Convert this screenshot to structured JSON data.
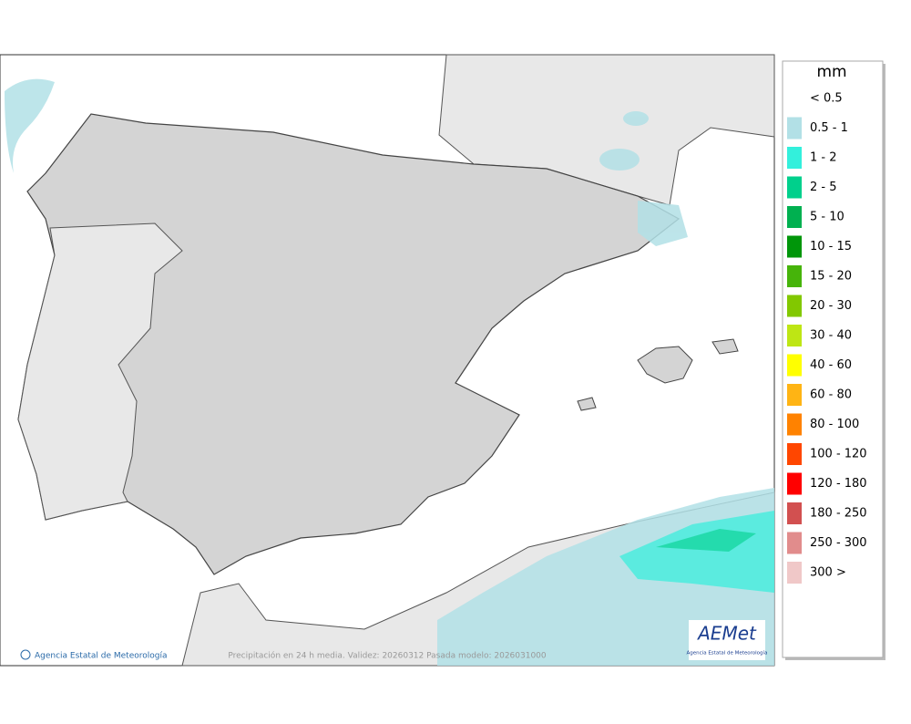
{
  "legend": {
    "unit": "mm",
    "items": [
      {
        "label": "< 0.5"
      },
      {
        "label": "0.5 - 1",
        "color": "#b2e0e6"
      },
      {
        "label": "1 - 2",
        "color": "#33f0dc"
      },
      {
        "label": "2 - 5",
        "color": "#00d08c"
      },
      {
        "label": "5 - 10",
        "color": "#00b050"
      },
      {
        "label": "10 - 15",
        "color": "#00960a"
      },
      {
        "label": "15 - 20",
        "color": "#46b40a"
      },
      {
        "label": "20 - 30",
        "color": "#82c800"
      },
      {
        "label": "30 - 40",
        "color": "#bee614"
      },
      {
        "label": "40 - 60",
        "color": "#ffff00"
      },
      {
        "label": "60 - 80",
        "color": "#ffb414"
      },
      {
        "label": "80 - 100",
        "color": "#ff8200"
      },
      {
        "label": "100 - 120",
        "color": "#ff4600"
      },
      {
        "label": "120 - 180",
        "color": "#ff0000"
      },
      {
        "label": "180 - 250",
        "color": "#d25050"
      },
      {
        "label": "250 - 300",
        "color": "#e18c8c"
      },
      {
        "label": "300 >",
        "color": "#f0c8c8"
      }
    ]
  },
  "footer": {
    "credit": "Agencia Estatal de Meteorología",
    "caption": "Precipitación en 24 h media. Validez: 20260312 Pasada modelo: 2026031000"
  },
  "logo": {
    "name": "AEMet",
    "subtitle": "Agencia Estatal de Meteorología"
  }
}
